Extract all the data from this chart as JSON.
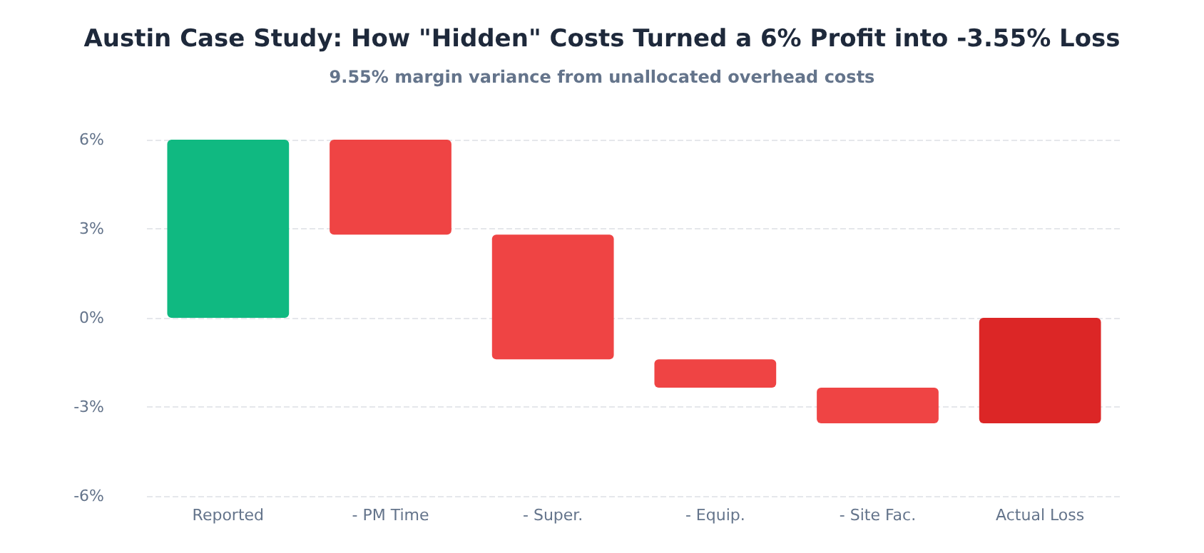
{
  "chart_data": {
    "type": "bar",
    "title": "Austin Case Study: How \"Hidden\" Costs Turned a 6% Profit into -3.55% Loss",
    "subtitle": "9.55% margin variance from unallocated overhead costs",
    "categories": [
      "Reported",
      "- PM Time",
      "- Super.",
      "- Equip.",
      "- Site Fac.",
      "Actual Loss"
    ],
    "values": [
      6,
      -3.2,
      -4.2,
      -0.95,
      -1.2,
      -3.55
    ],
    "base": [
      0,
      6,
      2.8,
      -1.4,
      -2.35,
      0
    ],
    "colors": [
      "#10b981",
      "#ef4444",
      "#ef4444",
      "#ef4444",
      "#ef4444",
      "#dc2626"
    ],
    "ylim": [
      -6,
      6
    ],
    "yticks": [
      {
        "value": -6,
        "label": "-6%"
      },
      {
        "value": -3,
        "label": "-3%"
      },
      {
        "value": 0,
        "label": "0%"
      },
      {
        "value": 3,
        "label": "3%"
      },
      {
        "value": 6,
        "label": "6%"
      }
    ],
    "grid": "y"
  }
}
